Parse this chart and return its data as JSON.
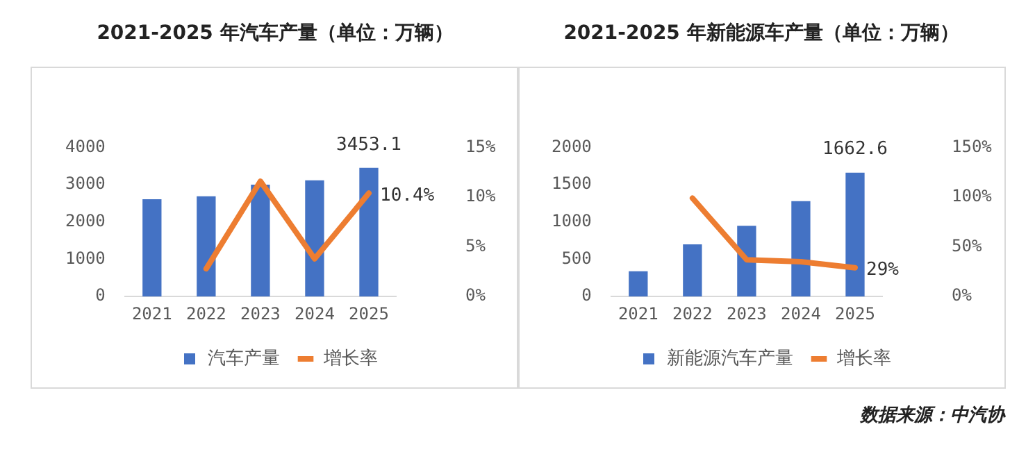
{
  "chart_data": [
    {
      "type": "bar",
      "title": "2021-2025 年汽车产量（单位：万辆）",
      "categories": [
        "2021",
        "2022",
        "2023",
        "2024",
        "2025"
      ],
      "series": [
        {
          "name": "汽车产量",
          "color": "#4472c4",
          "values": [
            2610,
            2690,
            3000,
            3120,
            3453.1
          ],
          "value_labels": [
            null,
            null,
            null,
            null,
            "3453.1"
          ]
        },
        {
          "name": "增长率",
          "type": "line",
          "axis": "y2",
          "color": "#ed7d31",
          "values": [
            null,
            2.8,
            11.6,
            3.8,
            10.4
          ],
          "value_labels": [
            null,
            null,
            null,
            null,
            "10.4%"
          ]
        }
      ],
      "ylim": [
        0,
        4000
      ],
      "yticks": [
        0,
        1000,
        2000,
        3000,
        4000
      ],
      "y2lim": [
        0,
        15
      ],
      "y2ticks": [
        {
          "value": 0,
          "label": "0%"
        },
        {
          "value": 5,
          "label": "5%"
        },
        {
          "value": 10,
          "label": "10%"
        },
        {
          "value": 15,
          "label": "15%"
        }
      ],
      "legend": "bottom",
      "marker": "none"
    },
    {
      "type": "bar",
      "title": "2021-2025 年新能源车产量（单位：万辆）",
      "categories": [
        "2021",
        "2022",
        "2023",
        "2024",
        "2025"
      ],
      "series": [
        {
          "name": "新能源汽车产量",
          "color": "#4472c4",
          "values": [
            340,
            700,
            950,
            1280,
            1662.6
          ],
          "value_labels": [
            null,
            null,
            null,
            null,
            "1662.6"
          ]
        },
        {
          "name": "增长率",
          "type": "line",
          "axis": "y2",
          "color": "#ed7d31",
          "values": [
            null,
            99,
            37,
            35,
            29
          ],
          "value_labels": [
            null,
            null,
            null,
            null,
            "29%"
          ]
        }
      ],
      "ylim": [
        0,
        2000
      ],
      "yticks": [
        0,
        500,
        1000,
        1500,
        2000
      ],
      "y2lim": [
        0,
        150
      ],
      "y2ticks": [
        {
          "value": 0,
          "label": "0%"
        },
        {
          "value": 50,
          "label": "50%"
        },
        {
          "value": 100,
          "label": "100%"
        },
        {
          "value": 150,
          "label": "150%"
        }
      ],
      "legend": "bottom",
      "marker": "none",
      "annotations": [
        "数据来源：中汽协"
      ]
    }
  ]
}
